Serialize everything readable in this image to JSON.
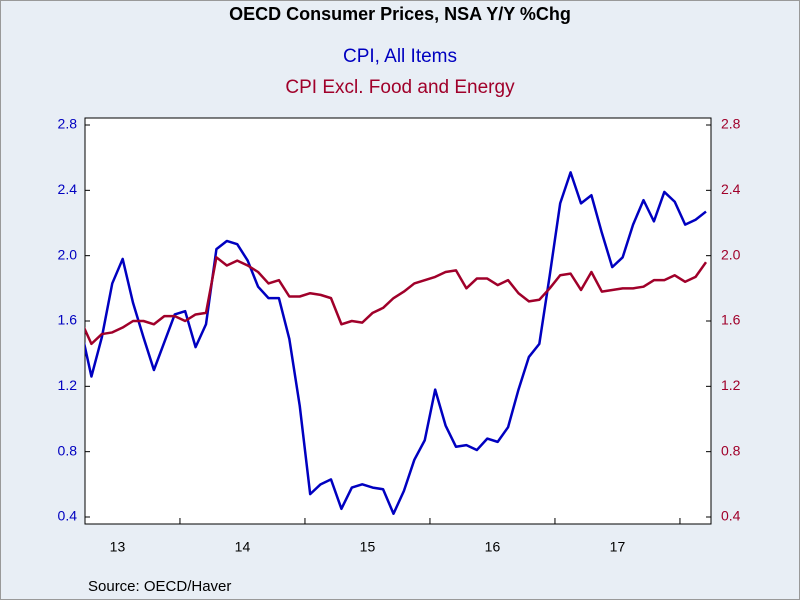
{
  "chart_data": {
    "type": "line",
    "title": "OECD Consumer Prices, NSA Y/Y %Chg",
    "source": "Source:  OECD/Haver",
    "categories": [
      null,
      null,
      null,
      null,
      "13",
      null,
      null,
      null,
      null,
      null,
      null,
      null,
      null,
      null,
      null,
      null,
      "14",
      null,
      null,
      null,
      null,
      null,
      null,
      null,
      null,
      null,
      null,
      null,
      "15",
      null,
      null,
      null,
      null,
      null,
      null,
      null,
      null,
      null,
      null,
      null,
      "16",
      null,
      null,
      null,
      null,
      null,
      null,
      null,
      null,
      null,
      null,
      null,
      "17",
      null,
      null,
      null,
      null,
      null,
      null,
      null,
      null
    ],
    "series": [
      {
        "name": "CPI, All Items",
        "color": "#0000c0",
        "values": [
          1.55,
          1.26,
          1.5,
          1.83,
          1.98,
          1.71,
          1.5,
          1.3,
          1.47,
          1.64,
          1.66,
          1.44,
          1.58,
          2.04,
          2.09,
          2.07,
          1.97,
          1.81,
          1.74,
          1.74,
          1.49,
          1.08,
          0.54,
          0.6,
          0.63,
          0.45,
          0.58,
          0.6,
          0.58,
          0.57,
          0.42,
          0.56,
          0.75,
          0.87,
          1.18,
          0.96,
          0.83,
          0.84,
          0.81,
          0.88,
          0.86,
          0.95,
          1.18,
          1.38,
          1.46,
          1.88,
          2.32,
          2.51,
          2.32,
          2.37,
          2.14,
          1.93,
          1.99,
          2.19,
          2.34,
          2.21,
          2.39,
          2.33,
          2.19,
          2.22,
          2.27
        ]
      },
      {
        "name": "CPI Excl. Food and Energy",
        "color": "#a0002a",
        "axis": "y2",
        "values": [
          1.6,
          1.46,
          1.52,
          1.53,
          1.56,
          1.6,
          1.6,
          1.58,
          1.63,
          1.63,
          1.6,
          1.64,
          1.65,
          1.99,
          1.94,
          1.97,
          1.94,
          1.9,
          1.83,
          1.85,
          1.75,
          1.75,
          1.77,
          1.76,
          1.74,
          1.58,
          1.6,
          1.59,
          1.65,
          1.68,
          1.74,
          1.78,
          1.83,
          1.85,
          1.87,
          1.9,
          1.91,
          1.8,
          1.86,
          1.86,
          1.82,
          1.85,
          1.77,
          1.72,
          1.73,
          1.8,
          1.88,
          1.89,
          1.79,
          1.9,
          1.78,
          1.79,
          1.8,
          1.8,
          1.81,
          1.85,
          1.85,
          1.88,
          1.84,
          1.87,
          1.96
        ]
      }
    ],
    "ylim": [
      0.4,
      2.8
    ],
    "yticks": [
      0.4,
      0.8,
      1.2,
      1.6,
      {
        "value": 2,
        "label": "2.0"
      },
      2.4,
      2.8
    ],
    "y2lim": [
      0.4,
      2.8
    ],
    "y2ticks": [
      0.4,
      0.8,
      1.2,
      1.6,
      {
        "value": 2,
        "label": "2.0"
      },
      2.4,
      2.8
    ],
    "grid": false
  }
}
